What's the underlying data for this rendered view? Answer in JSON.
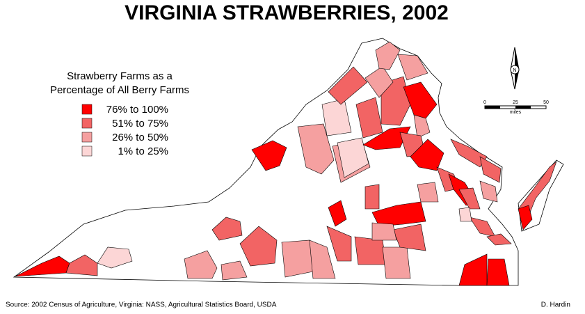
{
  "title": "VIRGINIA STRAWBERRIES, 2002",
  "legend": {
    "title_lines": [
      "Strawberry Farms as a",
      "Percentage of All Berry Farms"
    ],
    "items": [
      {
        "label": "76%  to 100%",
        "color": "#ff0000"
      },
      {
        "label": "51%  to  75%",
        "color": "#f26464"
      },
      {
        "label": "26%  to  50%",
        "color": "#f5a0a0"
      },
      {
        "label": "1%  to  25%",
        "color": "#fcd6d6"
      }
    ]
  },
  "north_label": "N",
  "scale_bar": {
    "ticks": [
      "0",
      "25",
      "50"
    ],
    "unit": "miles"
  },
  "source": "Source: 2002 Census of Agriculture, Virginia: NASS, Agricultural Statistics Board, USDA",
  "author": "D. Hardin"
}
